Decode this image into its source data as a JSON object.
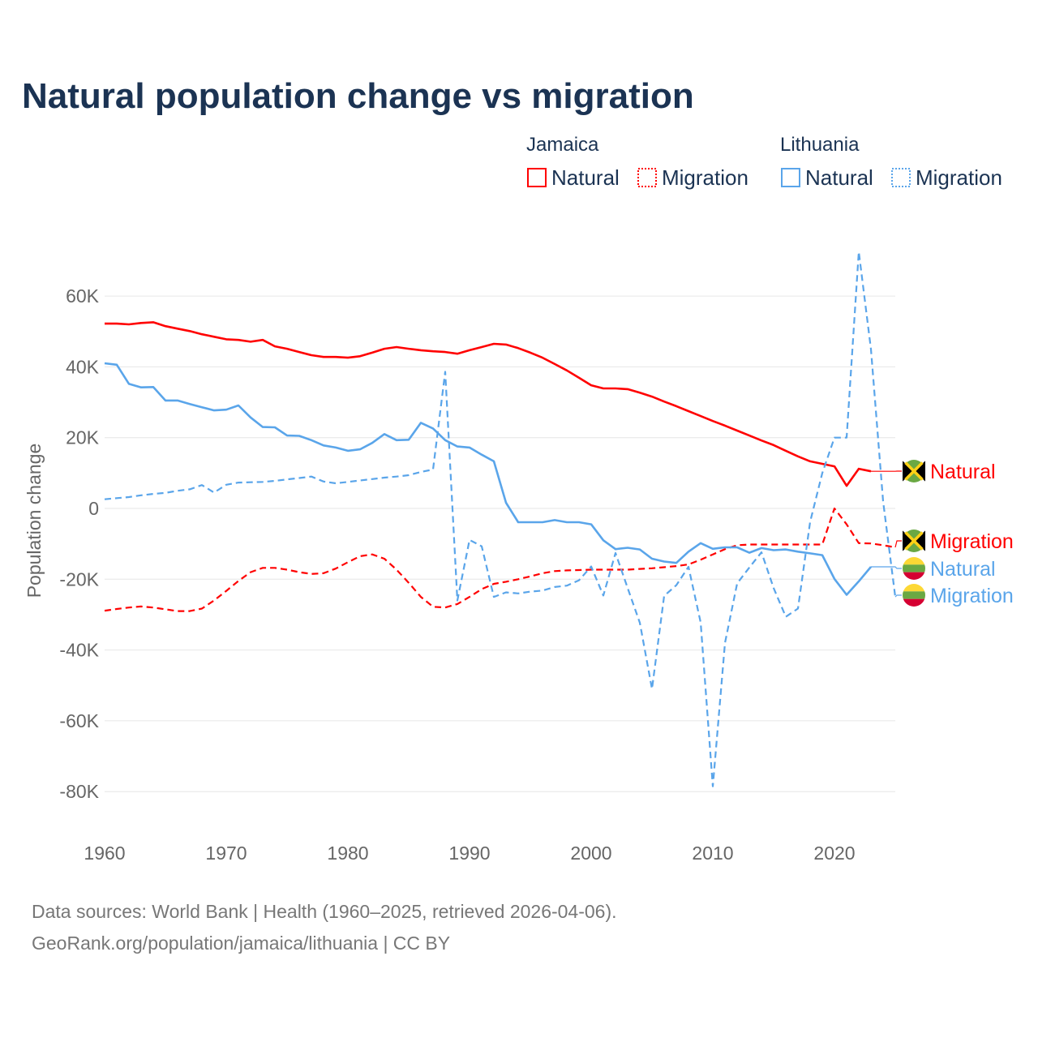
{
  "chart_data": {
    "type": "line",
    "title": "Natural population change vs migration",
    "ylabel": "Population change",
    "xlabel": "",
    "ylim": [
      -90000,
      70000
    ],
    "xlim": [
      1960,
      2025
    ],
    "x_ticks": [
      1960,
      1970,
      1980,
      1990,
      2000,
      2010,
      2020
    ],
    "x_tick_labels": [
      "1960",
      "1970",
      "1980",
      "1990",
      "2000",
      "2010",
      "2020"
    ],
    "y_ticks": [
      60000,
      40000,
      20000,
      0,
      -20000,
      -40000,
      -60000,
      -80000
    ],
    "y_tick_labels": [
      "60K",
      "40K",
      "20K",
      "0",
      "-20K",
      "-40K",
      "-60K",
      "-80K"
    ],
    "grid": true,
    "legend": {
      "placement": "top-right",
      "groups": [
        {
          "title": "Jamaica",
          "items": [
            "Natural",
            "Migration"
          ]
        },
        {
          "title": "Lithuania",
          "items": [
            "Natural",
            "Migration"
          ]
        }
      ]
    },
    "colors": {
      "jamaica": "#ff0000",
      "lithuania": "#5aa5ea"
    },
    "series": [
      {
        "name": "Jamaica Natural",
        "country": "jamaica",
        "style": "solid",
        "end_label": "Natural",
        "start": 1960,
        "values": [
          52200,
          52200,
          52000,
          52400,
          52600,
          51500,
          50800,
          50100,
          49200,
          48500,
          47800,
          47600,
          47100,
          47600,
          45800,
          45100,
          44200,
          43300,
          42800,
          42800,
          42600,
          43000,
          44000,
          45100,
          45600,
          45100,
          44700,
          44400,
          44200,
          43700,
          44700,
          45600,
          46500,
          46300,
          45300,
          44000,
          42600,
          40800,
          39000,
          36900,
          34800,
          33900,
          33900,
          33700,
          32700,
          31600,
          30200,
          28900,
          27500,
          26100,
          24700,
          23400,
          22000,
          20600,
          19200,
          17900,
          16300,
          14700,
          13300,
          12600,
          11900,
          6400,
          11200,
          10500
        ]
      },
      {
        "name": "Jamaica Migration",
        "country": "jamaica",
        "style": "dashed",
        "end_label": "Migration",
        "start": 1960,
        "values": [
          -28900,
          -28400,
          -28000,
          -27700,
          -28000,
          -28500,
          -29000,
          -29000,
          -28300,
          -26000,
          -23300,
          -20500,
          -18000,
          -16800,
          -16800,
          -17300,
          -18000,
          -18500,
          -18300,
          -17000,
          -15200,
          -13500,
          -13000,
          -14200,
          -17300,
          -21000,
          -25000,
          -27800,
          -28000,
          -27000,
          -25000,
          -22800,
          -21300,
          -20700,
          -20000,
          -19200,
          -18300,
          -17700,
          -17500,
          -17400,
          -17300,
          -17300,
          -17300,
          -17300,
          -17100,
          -16900,
          -16600,
          -16300,
          -15800,
          -14500,
          -13000,
          -11500,
          -10400,
          -10200,
          -10200,
          -10200,
          -10200,
          -10200,
          -10200,
          -10200,
          0,
          -4500,
          -9800,
          -9900,
          -10400,
          -11000
        ]
      },
      {
        "name": "Lithuania Natural",
        "country": "lithuania",
        "style": "solid",
        "end_label": "Natural",
        "start": 1960,
        "values": [
          41000,
          40600,
          35200,
          34200,
          34300,
          30500,
          30500,
          29500,
          28600,
          27700,
          27900,
          29100,
          25700,
          23000,
          22900,
          20600,
          20500,
          19300,
          17800,
          17200,
          16300,
          16700,
          18500,
          21000,
          19300,
          19400,
          24200,
          22600,
          19300,
          17500,
          17200,
          15200,
          13300,
          1600,
          -3900,
          -3900,
          -3900,
          -3300,
          -3900,
          -3900,
          -4500,
          -9000,
          -11500,
          -11100,
          -11600,
          -14200,
          -15000,
          -15400,
          -12200,
          -9800,
          -11400,
          -11000,
          -11000,
          -12500,
          -11200,
          -11800,
          -11600,
          -12200,
          -12700,
          -13200,
          -19900,
          -24400,
          -20600,
          -16500
        ]
      },
      {
        "name": "Lithuania Migration",
        "country": "lithuania",
        "style": "dashed",
        "end_label": "Migration",
        "start": 1960,
        "values": [
          2600,
          2900,
          3200,
          3700,
          4100,
          4400,
          5000,
          5400,
          6600,
          4500,
          6700,
          7300,
          7400,
          7500,
          7800,
          8200,
          8600,
          9000,
          7600,
          7100,
          7500,
          7900,
          8300,
          8700,
          9000,
          9400,
          10300,
          11000,
          38600,
          -26000,
          -8900,
          -10700,
          -25000,
          -23700,
          -24000,
          -23500,
          -23200,
          -22200,
          -21800,
          -20300,
          -16400,
          -24600,
          -12600,
          -22500,
          -32300,
          -51000,
          -24700,
          -21700,
          -16500,
          -32200,
          -78500,
          -38000,
          -21200,
          -16700,
          -12400,
          -22500,
          -30600,
          -28300,
          -3800,
          10000,
          20000,
          20000,
          72500,
          45000,
          2000,
          -25000
        ]
      }
    ]
  },
  "footer": {
    "line1": "Data sources: World Bank | Health (1960–2025, retrieved 2026-04-06).",
    "line2": "GeoRank.org/population/jamaica/lithuania | CC BY"
  }
}
